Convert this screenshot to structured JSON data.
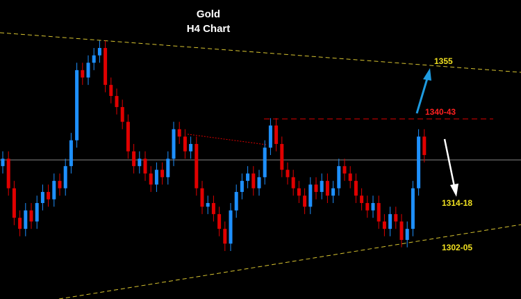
{
  "chart_data": {
    "type": "candlestick",
    "title": "Gold",
    "subtitle": "H4 Chart",
    "ylim": [
      1292,
      1373
    ],
    "up_color": "#1e90ff",
    "down_color": "#e00000",
    "open": [
      1328,
      1330,
      1322,
      1314,
      1311,
      1316,
      1313,
      1318,
      1321,
      1319,
      1324,
      1322,
      1328,
      1335,
      1354,
      1352,
      1356,
      1358,
      1360,
      1350,
      1347,
      1344,
      1340,
      1332,
      1328,
      1330,
      1326,
      1323,
      1327,
      1325,
      1330,
      1338,
      1336,
      1332,
      1334,
      1322,
      1317,
      1318,
      1315,
      1311,
      1307,
      1316,
      1321,
      1324,
      1326,
      1322,
      1325,
      1333,
      1339,
      1334,
      1327,
      1325,
      1322,
      1320,
      1317,
      1323,
      1321,
      1324,
      1320,
      1322,
      1328,
      1326,
      1324,
      1320,
      1318,
      1316,
      1318,
      1313,
      1311,
      1315,
      1313,
      1308,
      1311,
      1322,
      1336
    ],
    "high": [
      1332,
      1332,
      1324,
      1316,
      1318,
      1318,
      1320,
      1323,
      1323,
      1326,
      1326,
      1330,
      1337,
      1356,
      1356,
      1358,
      1360,
      1362,
      1362,
      1352,
      1349,
      1346,
      1342,
      1334,
      1332,
      1332,
      1328,
      1329,
      1329,
      1332,
      1340,
      1340,
      1338,
      1336,
      1336,
      1324,
      1320,
      1320,
      1317,
      1313,
      1318,
      1323,
      1326,
      1328,
      1328,
      1327,
      1335,
      1341,
      1341,
      1336,
      1329,
      1327,
      1324,
      1322,
      1325,
      1325,
      1326,
      1326,
      1324,
      1330,
      1330,
      1328,
      1326,
      1322,
      1320,
      1320,
      1320,
      1315,
      1317,
      1317,
      1315,
      1313,
      1324,
      1338,
      1338
    ],
    "low": [
      1326,
      1320,
      1312,
      1309,
      1309,
      1311,
      1311,
      1316,
      1317,
      1317,
      1320,
      1320,
      1326,
      1333,
      1350,
      1350,
      1354,
      1356,
      1348,
      1345,
      1342,
      1338,
      1330,
      1326,
      1326,
      1324,
      1321,
      1321,
      1323,
      1323,
      1328,
      1334,
      1330,
      1330,
      1320,
      1315,
      1315,
      1313,
      1309,
      1305,
      1305,
      1314,
      1319,
      1322,
      1320,
      1320,
      1323,
      1331,
      1332,
      1325,
      1323,
      1320,
      1318,
      1315,
      1315,
      1319,
      1319,
      1318,
      1318,
      1320,
      1324,
      1322,
      1318,
      1316,
      1314,
      1314,
      1311,
      1309,
      1309,
      1311,
      1306,
      1306,
      1309,
      1320,
      1329
    ],
    "close": [
      1330,
      1322,
      1314,
      1311,
      1316,
      1313,
      1318,
      1321,
      1319,
      1324,
      1322,
      1328,
      1335,
      1354,
      1352,
      1356,
      1358,
      1360,
      1350,
      1347,
      1344,
      1340,
      1332,
      1328,
      1330,
      1326,
      1323,
      1327,
      1325,
      1330,
      1338,
      1336,
      1332,
      1334,
      1322,
      1317,
      1318,
      1315,
      1311,
      1307,
      1316,
      1321,
      1324,
      1326,
      1322,
      1325,
      1333,
      1339,
      1334,
      1327,
      1325,
      1322,
      1320,
      1317,
      1323,
      1321,
      1324,
      1320,
      1322,
      1328,
      1326,
      1324,
      1320,
      1318,
      1316,
      1318,
      1313,
      1311,
      1315,
      1313,
      1308,
      1311,
      1322,
      1336,
      1331
    ],
    "annotations": [
      "1355",
      "1340-43",
      "1314-18",
      "1302-05"
    ]
  }
}
